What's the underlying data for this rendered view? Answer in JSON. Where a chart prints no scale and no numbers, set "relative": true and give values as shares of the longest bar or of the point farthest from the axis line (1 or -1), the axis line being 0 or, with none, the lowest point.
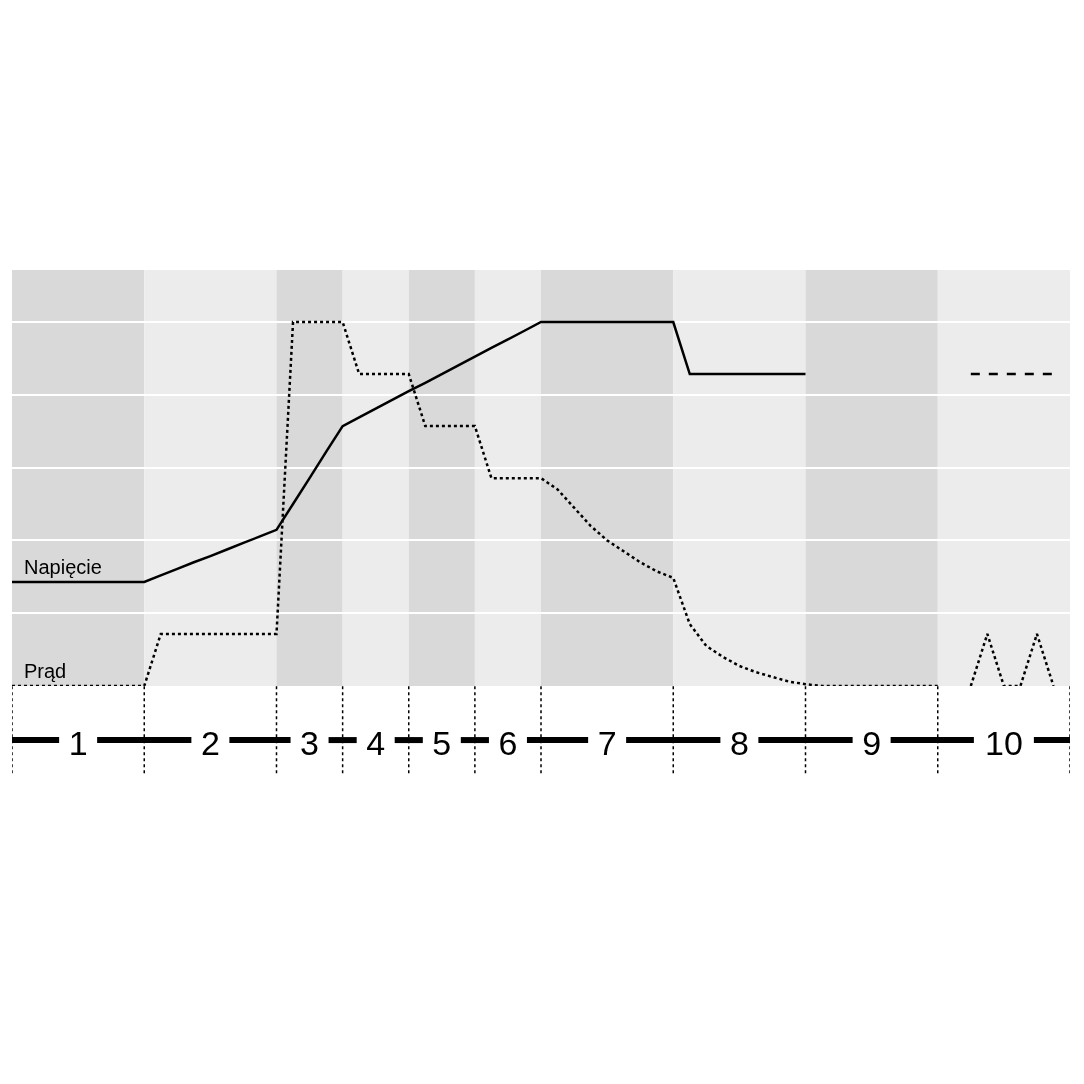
{
  "chart_data": {
    "type": "line",
    "relative": true,
    "tick_labels": "x",
    "grid": "y",
    "legend": false,
    "categories": [
      null,
      null,
      null,
      null,
      "1",
      null,
      null,
      null,
      null,
      null,
      null,
      null,
      "2",
      null,
      null,
      null,
      null,
      null,
      "3",
      null,
      null,
      null,
      "4",
      null,
      null,
      null,
      "5",
      null,
      null,
      null,
      "6",
      null,
      null,
      null,
      null,
      null,
      "7",
      null,
      null,
      null,
      null,
      null,
      null,
      null,
      "8",
      null,
      null,
      null,
      null,
      null,
      null,
      null,
      "9",
      null,
      null,
      null,
      null,
      null,
      null,
      null,
      "10",
      null,
      null,
      null,
      null
    ],
    "series": [
      {
        "name": "Napięcie",
        "color": "#000000",
        "line_style": "solid",
        "values": [
          0.286,
          0.286,
          0.286,
          0.286,
          0.286,
          0.286,
          0.286,
          0.286,
          0.286,
          0.304,
          0.322,
          0.34,
          0.357,
          0.375,
          0.393,
          0.411,
          0.429,
          0.5,
          0.571,
          0.643,
          0.714,
          0.738,
          0.762,
          0.786,
          0.81,
          0.833,
          0.857,
          0.881,
          0.905,
          0.929,
          0.952,
          0.976,
          1,
          1,
          1,
          1,
          1,
          1,
          1,
          1,
          1,
          0.857,
          0.857,
          0.857,
          0.857,
          0.857,
          0.857,
          0.857,
          0.857,
          null,
          null,
          null,
          null,
          null,
          null,
          null,
          null,
          null,
          null,
          null,
          null,
          null,
          null,
          null,
          null
        ]
      },
      {
        "name": "Prąd",
        "color": "#000000",
        "line_style": "dotted",
        "values": [
          0,
          0,
          0,
          0,
          0,
          0,
          0,
          0,
          0,
          0.143,
          0.143,
          0.143,
          0.143,
          0.143,
          0.143,
          0.143,
          0.143,
          1,
          1,
          1,
          1,
          0.857,
          0.857,
          0.857,
          0.857,
          0.714,
          0.714,
          0.714,
          0.714,
          0.571,
          0.571,
          0.571,
          0.571,
          0.54,
          0.49,
          0.44,
          0.4,
          0.37,
          0.34,
          0.315,
          0.297,
          0.17,
          0.11,
          0.08,
          0.055,
          0.038,
          0.025,
          0.012,
          0.005,
          0,
          0,
          0,
          0,
          0,
          0,
          0,
          0,
          null,
          0,
          0.143,
          0,
          0,
          0.143,
          0,
          null
        ]
      },
      {
        "color": "#000000",
        "line_style": "dashed",
        "values": [
          null,
          null,
          null,
          null,
          null,
          null,
          null,
          null,
          null,
          null,
          null,
          null,
          null,
          null,
          null,
          null,
          null,
          null,
          null,
          null,
          null,
          null,
          null,
          null,
          null,
          null,
          null,
          null,
          null,
          null,
          null,
          null,
          null,
          null,
          null,
          null,
          null,
          null,
          null,
          null,
          null,
          null,
          null,
          null,
          null,
          null,
          null,
          null,
          null,
          null,
          null,
          null,
          null,
          null,
          null,
          null,
          null,
          null,
          0.857,
          0.857,
          0.857,
          0.857,
          0.857,
          0.857,
          null
        ]
      }
    ]
  }
}
